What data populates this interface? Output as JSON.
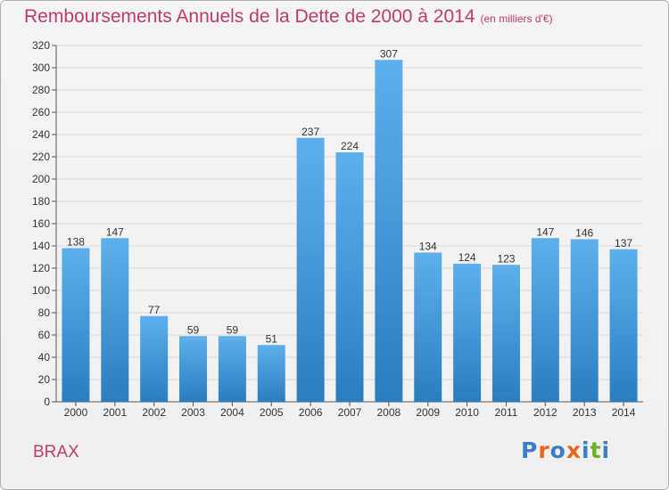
{
  "header": {
    "title": "Remboursements Annuels de la Dette de 2000 à 2014",
    "subtitle": "(en milliers d'€)"
  },
  "footer": {
    "commune": "BRAX",
    "logo_text": "Proxiti",
    "logo_colors": [
      "#3a7ec8",
      "#e9661f",
      "#3a7ec8",
      "#e9661f",
      "#3a7ec8",
      "#6ab22a",
      "#3a7ec8"
    ]
  },
  "colors": {
    "title": "#c03a6e",
    "bar_light": "#5eb0ec",
    "bar_dark": "#2a7ec0",
    "grid": "#d8d8d8"
  },
  "chart_data": {
    "type": "bar",
    "categories": [
      "2000",
      "2001",
      "2002",
      "2003",
      "2004",
      "2005",
      "2006",
      "2007",
      "2008",
      "2009",
      "2010",
      "2011",
      "2012",
      "2013",
      "2014"
    ],
    "values": [
      138,
      147,
      77,
      59,
      59,
      51,
      237,
      224,
      307,
      134,
      124,
      123,
      147,
      146,
      137
    ],
    "ylim": [
      0,
      320
    ],
    "yticks": [
      0,
      20,
      40,
      60,
      80,
      100,
      120,
      140,
      160,
      180,
      200,
      220,
      240,
      260,
      280,
      300,
      320
    ],
    "grid": true,
    "data_labels": true
  }
}
